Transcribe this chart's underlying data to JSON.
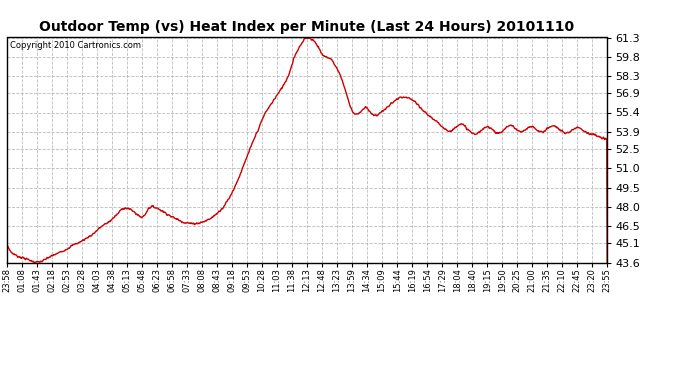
{
  "title": "Outdoor Temp (vs) Heat Index per Minute (Last 24 Hours) 20101110",
  "copyright_text": "Copyright 2010 Cartronics.com",
  "line_color": "#cc0000",
  "bg_color": "#ffffff",
  "plot_bg_color": "#ffffff",
  "grid_color": "#aaaaaa",
  "ylim": [
    43.6,
    61.3
  ],
  "yticks": [
    43.6,
    45.1,
    46.5,
    48.0,
    49.5,
    51.0,
    52.5,
    53.9,
    55.4,
    56.9,
    58.3,
    59.8,
    61.3
  ],
  "xtick_labels": [
    "23:58",
    "01:08",
    "01:43",
    "02:18",
    "02:53",
    "03:28",
    "04:03",
    "04:38",
    "05:13",
    "05:48",
    "06:23",
    "06:58",
    "07:33",
    "08:08",
    "08:43",
    "09:18",
    "09:53",
    "10:28",
    "11:03",
    "11:38",
    "12:13",
    "12:48",
    "13:23",
    "13:59",
    "14:34",
    "15:09",
    "15:44",
    "16:19",
    "16:54",
    "17:29",
    "18:04",
    "18:40",
    "19:15",
    "19:50",
    "20:25",
    "21:00",
    "21:35",
    "22:10",
    "22:45",
    "23:20",
    "23:55"
  ],
  "key_points": [
    [
      0,
      45.0
    ],
    [
      10,
      44.4
    ],
    [
      25,
      44.1
    ],
    [
      45,
      43.9
    ],
    [
      65,
      43.65
    ],
    [
      75,
      43.63
    ],
    [
      85,
      43.7
    ],
    [
      100,
      44.0
    ],
    [
      120,
      44.3
    ],
    [
      140,
      44.6
    ],
    [
      160,
      45.0
    ],
    [
      175,
      45.2
    ],
    [
      190,
      45.5
    ],
    [
      205,
      45.8
    ],
    [
      215,
      46.1
    ],
    [
      225,
      46.4
    ],
    [
      235,
      46.6
    ],
    [
      245,
      46.8
    ],
    [
      255,
      47.1
    ],
    [
      265,
      47.4
    ],
    [
      275,
      47.8
    ],
    [
      282,
      47.9
    ],
    [
      290,
      47.85
    ],
    [
      300,
      47.7
    ],
    [
      308,
      47.5
    ],
    [
      315,
      47.3
    ],
    [
      322,
      47.15
    ],
    [
      330,
      47.3
    ],
    [
      340,
      47.9
    ],
    [
      348,
      48.0
    ],
    [
      355,
      47.95
    ],
    [
      365,
      47.8
    ],
    [
      375,
      47.6
    ],
    [
      385,
      47.4
    ],
    [
      395,
      47.2
    ],
    [
      405,
      47.05
    ],
    [
      415,
      46.9
    ],
    [
      425,
      46.75
    ],
    [
      435,
      46.7
    ],
    [
      445,
      46.65
    ],
    [
      460,
      46.7
    ],
    [
      475,
      46.85
    ],
    [
      490,
      47.1
    ],
    [
      505,
      47.5
    ],
    [
      520,
      48.0
    ],
    [
      535,
      48.8
    ],
    [
      550,
      49.8
    ],
    [
      565,
      51.0
    ],
    [
      580,
      52.3
    ],
    [
      595,
      53.5
    ],
    [
      608,
      54.5
    ],
    [
      618,
      55.3
    ],
    [
      628,
      55.8
    ],
    [
      638,
      56.3
    ],
    [
      645,
      56.65
    ],
    [
      653,
      57.0
    ],
    [
      658,
      57.3
    ],
    [
      662,
      57.5
    ],
    [
      667,
      57.8
    ],
    [
      672,
      58.1
    ],
    [
      677,
      58.5
    ],
    [
      682,
      59.0
    ],
    [
      687,
      59.6
    ],
    [
      692,
      60.0
    ],
    [
      697,
      60.3
    ],
    [
      702,
      60.6
    ],
    [
      707,
      60.8
    ],
    [
      712,
      61.1
    ],
    [
      717,
      61.28
    ],
    [
      722,
      61.3
    ],
    [
      727,
      61.25
    ],
    [
      732,
      61.15
    ],
    [
      737,
      61.0
    ],
    [
      742,
      60.8
    ],
    [
      747,
      60.5
    ],
    [
      752,
      60.2
    ],
    [
      757,
      59.9
    ],
    [
      762,
      59.8
    ],
    [
      767,
      59.75
    ],
    [
      772,
      59.7
    ],
    [
      777,
      59.6
    ],
    [
      782,
      59.4
    ],
    [
      787,
      59.1
    ],
    [
      792,
      58.8
    ],
    [
      797,
      58.5
    ],
    [
      802,
      58.1
    ],
    [
      807,
      57.6
    ],
    [
      812,
      57.1
    ],
    [
      817,
      56.5
    ],
    [
      822,
      56.0
    ],
    [
      827,
      55.6
    ],
    [
      833,
      55.3
    ],
    [
      840,
      55.25
    ],
    [
      848,
      55.4
    ],
    [
      855,
      55.7
    ],
    [
      860,
      55.8
    ],
    [
      865,
      55.7
    ],
    [
      870,
      55.5
    ],
    [
      875,
      55.3
    ],
    [
      880,
      55.15
    ],
    [
      888,
      55.2
    ],
    [
      895,
      55.4
    ],
    [
      905,
      55.6
    ],
    [
      915,
      55.9
    ],
    [
      925,
      56.2
    ],
    [
      935,
      56.45
    ],
    [
      943,
      56.55
    ],
    [
      950,
      56.6
    ],
    [
      958,
      56.55
    ],
    [
      965,
      56.5
    ],
    [
      972,
      56.4
    ],
    [
      978,
      56.25
    ],
    [
      984,
      56.0
    ],
    [
      990,
      55.8
    ],
    [
      996,
      55.6
    ],
    [
      1003,
      55.4
    ],
    [
      1010,
      55.2
    ],
    [
      1018,
      55.0
    ],
    [
      1025,
      54.8
    ],
    [
      1032,
      54.6
    ],
    [
      1040,
      54.4
    ],
    [
      1048,
      54.2
    ],
    [
      1055,
      54.0
    ],
    [
      1062,
      53.9
    ],
    [
      1068,
      54.0
    ],
    [
      1074,
      54.2
    ],
    [
      1080,
      54.4
    ],
    [
      1086,
      54.5
    ],
    [
      1092,
      54.45
    ],
    [
      1098,
      54.3
    ],
    [
      1104,
      54.1
    ],
    [
      1110,
      53.9
    ],
    [
      1116,
      53.75
    ],
    [
      1122,
      53.7
    ],
    [
      1128,
      53.75
    ],
    [
      1135,
      53.9
    ],
    [
      1142,
      54.1
    ],
    [
      1148,
      54.25
    ],
    [
      1154,
      54.3
    ],
    [
      1160,
      54.2
    ],
    [
      1166,
      54.0
    ],
    [
      1172,
      53.85
    ],
    [
      1178,
      53.75
    ],
    [
      1184,
      53.8
    ],
    [
      1190,
      54.0
    ],
    [
      1196,
      54.2
    ],
    [
      1202,
      54.35
    ],
    [
      1208,
      54.4
    ],
    [
      1214,
      54.3
    ],
    [
      1220,
      54.1
    ],
    [
      1226,
      53.95
    ],
    [
      1232,
      53.85
    ],
    [
      1238,
      53.9
    ],
    [
      1244,
      54.05
    ],
    [
      1250,
      54.2
    ],
    [
      1256,
      54.3
    ],
    [
      1262,
      54.25
    ],
    [
      1268,
      54.1
    ],
    [
      1274,
      53.95
    ],
    [
      1280,
      53.85
    ],
    [
      1286,
      53.9
    ],
    [
      1292,
      54.05
    ],
    [
      1298,
      54.2
    ],
    [
      1304,
      54.3
    ],
    [
      1310,
      54.35
    ],
    [
      1316,
      54.3
    ],
    [
      1322,
      54.15
    ],
    [
      1328,
      54.0
    ],
    [
      1334,
      53.85
    ],
    [
      1340,
      53.75
    ],
    [
      1346,
      53.8
    ],
    [
      1352,
      53.95
    ],
    [
      1358,
      54.1
    ],
    [
      1364,
      54.2
    ],
    [
      1370,
      54.25
    ],
    [
      1376,
      54.15
    ],
    [
      1382,
      54.0
    ],
    [
      1388,
      53.85
    ],
    [
      1394,
      53.75
    ],
    [
      1400,
      53.7
    ],
    [
      1406,
      53.65
    ],
    [
      1412,
      53.6
    ],
    [
      1418,
      53.5
    ],
    [
      1424,
      53.4
    ],
    [
      1430,
      53.35
    ],
    [
      1436,
      53.3
    ],
    [
      1439,
      53.3
    ]
  ]
}
